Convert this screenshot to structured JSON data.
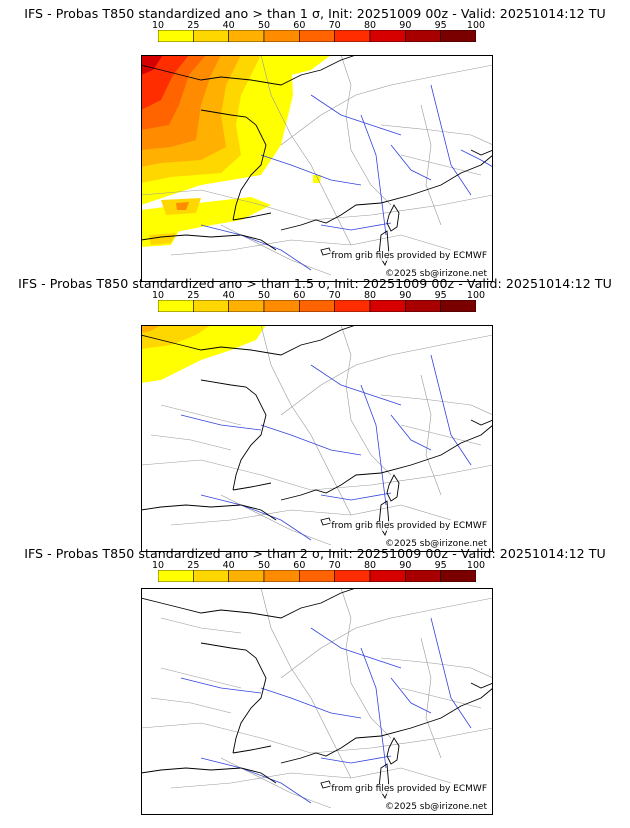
{
  "colorbar": {
    "levels": [
      "10",
      "25",
      "40",
      "50",
      "60",
      "70",
      "80",
      "90",
      "95",
      "100"
    ],
    "colors": [
      "#ffff00",
      "#ffd700",
      "#ffb000",
      "#ff8c00",
      "#ff6400",
      "#ff2d00",
      "#d60000",
      "#a80000",
      "#7a0000"
    ]
  },
  "panels": [
    {
      "title": "IFS - Probas T850  standardized ano > than 1 σ, Init: 20251009 00z - Valid: 20251014:12 TU",
      "threshold": "1 σ",
      "credit": "from grib files provided by ECMWF",
      "copyright": "©2025 sb@irizone.net"
    },
    {
      "title": "IFS - Probas T850  standardized ano > than 1.5 σ, Init: 20251009 00z - Valid: 20251014:12 TU",
      "threshold": "1.5 σ",
      "credit": "from grib files provided by ECMWF",
      "copyright": "©2025 sb@irizone.net"
    },
    {
      "title": "IFS - Probas T850  standardized ano > than 2 σ, Init: 20251009 00z - Valid: 20251014:12 TU",
      "threshold": "2 σ",
      "credit": "from grib files provided by ECMWF",
      "copyright": "©2025 sb@irizone.net"
    }
  ],
  "colors": {
    "river": "#3344dd",
    "border": "#999999",
    "coast": "#000000"
  }
}
